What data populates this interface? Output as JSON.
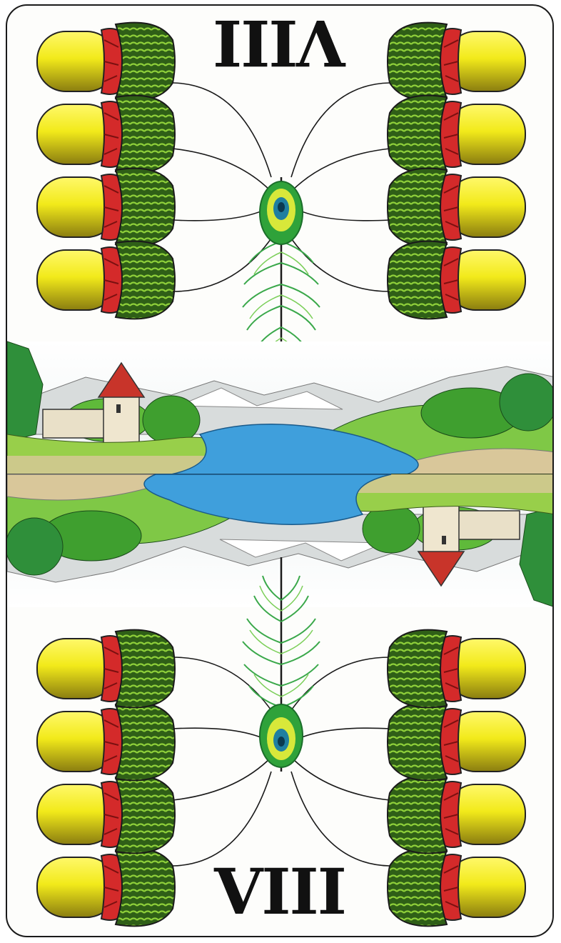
{
  "card": {
    "rank_top": "VIII",
    "rank_bottom": "VIII"
  },
  "colors": {
    "acorn_nut": "#f2ea1a",
    "acorn_cap": "#3f7a22",
    "acorn_band": "#d42a2a",
    "water": "#3f9fdc",
    "feather_green": "#4fb83a"
  },
  "icons": {
    "suit": "acorn-icon",
    "decoration": "feather-icon"
  }
}
